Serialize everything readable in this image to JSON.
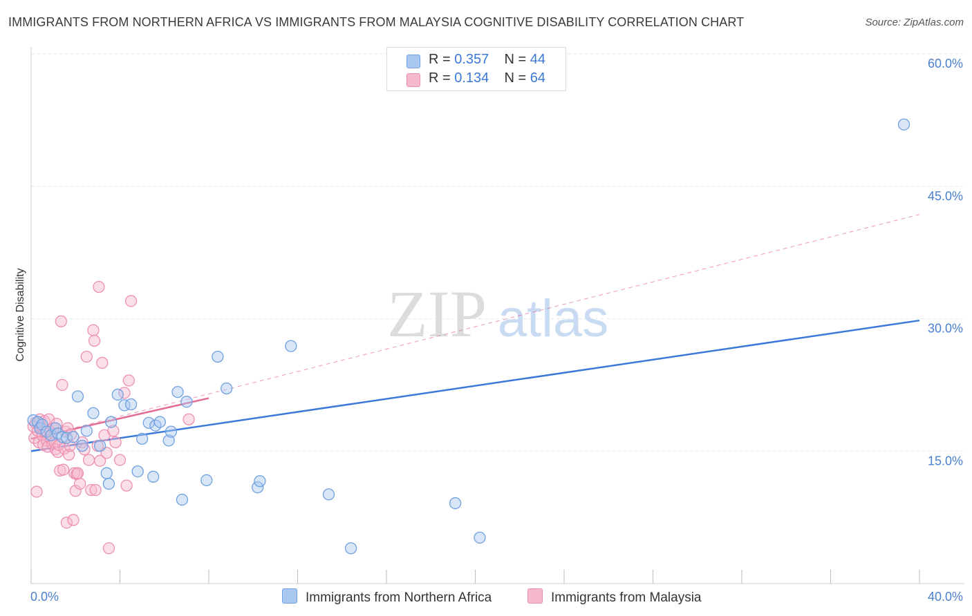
{
  "title": "IMMIGRANTS FROM NORTHERN AFRICA VS IMMIGRANTS FROM MALAYSIA COGNITIVE DISABILITY CORRELATION CHART",
  "source": "Source: ZipAtlas.com",
  "watermark": {
    "zip": "ZIP",
    "atlas": "atlas"
  },
  "legend": {
    "r_label": "R =",
    "n_label": "N =",
    "rows": [
      {
        "r": "0.357",
        "n": "44",
        "color": "#a9c8f0"
      },
      {
        "r": "0.134",
        "n": "64",
        "color": "#f6b8cb"
      }
    ]
  },
  "colors": {
    "blue": "#3b78d8",
    "blue_fill": "#a9c8f0",
    "pink": "#e36b98",
    "pink_fill": "#f6b8cb",
    "grid": "#e5e5e5",
    "tick_text": "#4a7fcf"
  },
  "chart_data": {
    "type": "scatter",
    "title": "IMMIGRANTS FROM NORTHERN AFRICA VS IMMIGRANTS FROM MALAYSIA COGNITIVE DISABILITY CORRELATION CHART",
    "xlabel": "",
    "ylabel": "Cognitive Disability",
    "xlim": [
      0,
      40
    ],
    "ylim": [
      0,
      60
    ],
    "x_tick_labels": [
      "0.0%",
      "40.0%"
    ],
    "y_ticks": [
      15,
      30,
      45,
      60
    ],
    "y_tick_labels": [
      "15.0%",
      "30.0%",
      "45.0%",
      "60.0%"
    ],
    "series": [
      {
        "name": "Immigrants from Northern Africa",
        "color": "#3b78d8",
        "r": 0.357,
        "n": 44,
        "trend": {
          "x": [
            0,
            40
          ],
          "y": [
            15.0,
            29.8
          ],
          "style": "solid"
        },
        "points": [
          [
            0.1,
            18.5
          ],
          [
            0.3,
            18.3
          ],
          [
            0.4,
            17.6
          ],
          [
            0.5,
            18.0
          ],
          [
            0.7,
            17.2
          ],
          [
            0.9,
            16.8
          ],
          [
            1.1,
            17.6
          ],
          [
            1.2,
            17.0
          ],
          [
            1.4,
            16.6
          ],
          [
            1.6,
            16.5
          ],
          [
            1.9,
            16.6
          ],
          [
            2.1,
            21.2
          ],
          [
            2.3,
            15.6
          ],
          [
            2.5,
            17.3
          ],
          [
            2.8,
            19.3
          ],
          [
            3.1,
            15.6
          ],
          [
            3.4,
            12.5
          ],
          [
            3.5,
            11.3
          ],
          [
            3.6,
            18.3
          ],
          [
            3.9,
            21.4
          ],
          [
            4.2,
            20.2
          ],
          [
            4.5,
            20.3
          ],
          [
            4.8,
            12.7
          ],
          [
            5.0,
            16.4
          ],
          [
            5.3,
            18.2
          ],
          [
            5.5,
            12.1
          ],
          [
            5.6,
            17.9
          ],
          [
            5.8,
            18.3
          ],
          [
            6.2,
            16.2
          ],
          [
            6.3,
            17.2
          ],
          [
            6.6,
            21.7
          ],
          [
            6.8,
            9.5
          ],
          [
            7.0,
            20.6
          ],
          [
            7.9,
            11.7
          ],
          [
            8.4,
            25.7
          ],
          [
            8.8,
            22.1
          ],
          [
            10.2,
            10.9
          ],
          [
            10.3,
            11.6
          ],
          [
            11.7,
            26.9
          ],
          [
            13.4,
            10.1
          ],
          [
            14.4,
            4.0
          ],
          [
            19.1,
            9.1
          ],
          [
            20.2,
            5.2
          ],
          [
            39.3,
            52.0
          ]
        ]
      },
      {
        "name": "Immigrants from Malaysia",
        "color": "#e36b98",
        "r": 0.134,
        "n": 64,
        "trend": {
          "x": [
            0,
            8
          ],
          "y": [
            16.4,
            21.0
          ],
          "style": "solid",
          "extended": {
            "x": [
              0,
              40
            ],
            "y": [
              16.4,
              41.8
            ],
            "style": "dashed"
          }
        },
        "points": [
          [
            0.1,
            17.8
          ],
          [
            0.15,
            16.5
          ],
          [
            0.2,
            18.2
          ],
          [
            0.3,
            17.3
          ],
          [
            0.35,
            16.0
          ],
          [
            0.4,
            18.6
          ],
          [
            0.45,
            17.8
          ],
          [
            0.5,
            16.8
          ],
          [
            0.55,
            15.7
          ],
          [
            0.6,
            18.4
          ],
          [
            0.65,
            17.1
          ],
          [
            0.7,
            16.2
          ],
          [
            0.75,
            15.5
          ],
          [
            0.8,
            18.6
          ],
          [
            0.85,
            17.2
          ],
          [
            0.9,
            16.4
          ],
          [
            0.95,
            15.8
          ],
          [
            1.0,
            17.6
          ],
          [
            1.05,
            16.0
          ],
          [
            1.1,
            15.2
          ],
          [
            1.15,
            18.1
          ],
          [
            1.2,
            14.9
          ],
          [
            1.25,
            15.7
          ],
          [
            1.3,
            12.8
          ],
          [
            1.35,
            29.7
          ],
          [
            1.4,
            22.5
          ],
          [
            1.45,
            12.9
          ],
          [
            1.5,
            15.3
          ],
          [
            1.55,
            17.2
          ],
          [
            1.6,
            6.9
          ],
          [
            1.65,
            17.6
          ],
          [
            1.7,
            14.6
          ],
          [
            1.75,
            15.6
          ],
          [
            1.8,
            16.9
          ],
          [
            1.9,
            7.2
          ],
          [
            1.95,
            12.5
          ],
          [
            2.0,
            10.5
          ],
          [
            2.05,
            12.4
          ],
          [
            2.1,
            12.5
          ],
          [
            2.2,
            11.3
          ],
          [
            2.3,
            16.0
          ],
          [
            2.4,
            15.2
          ],
          [
            2.5,
            25.7
          ],
          [
            2.6,
            14.0
          ],
          [
            2.7,
            10.6
          ],
          [
            2.8,
            28.7
          ],
          [
            2.85,
            27.5
          ],
          [
            2.9,
            10.6
          ],
          [
            3.0,
            15.6
          ],
          [
            3.05,
            33.6
          ],
          [
            3.1,
            13.9
          ],
          [
            3.2,
            25.0
          ],
          [
            3.3,
            16.8
          ],
          [
            3.4,
            14.8
          ],
          [
            3.5,
            4.0
          ],
          [
            3.7,
            17.3
          ],
          [
            3.8,
            16.0
          ],
          [
            4.0,
            14.0
          ],
          [
            4.2,
            21.6
          ],
          [
            4.3,
            11.1
          ],
          [
            4.4,
            23.0
          ],
          [
            4.5,
            32.0
          ],
          [
            7.1,
            18.6
          ],
          [
            0.25,
            10.4
          ]
        ]
      }
    ]
  }
}
